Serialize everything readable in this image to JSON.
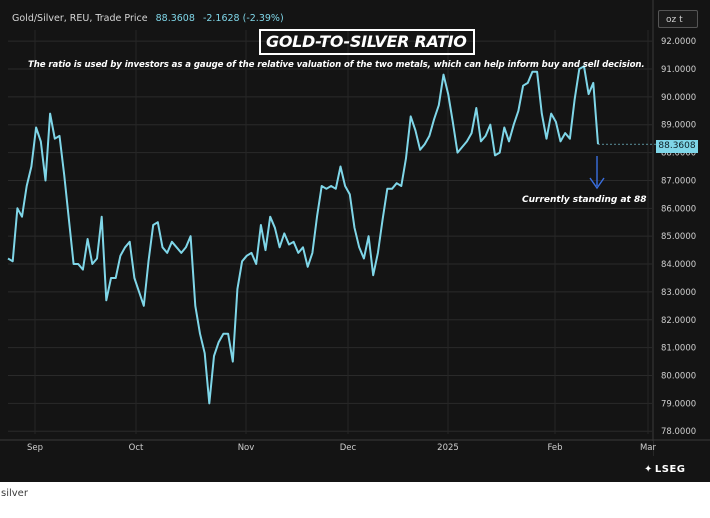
{
  "header": {
    "symbol": "Gold/Silver, REU, Trade Price",
    "price": "88.3608",
    "change": "-2.1628 (-2.39%)",
    "unit_button": "oz t"
  },
  "caption": "silver",
  "logo": {
    "text": "LSEG",
    "icon": "lseg-logo-icon"
  },
  "colors": {
    "background": "#141414",
    "line": "#7fd6e8",
    "arrow": "#3a6fe0",
    "text": "#ffffff"
  },
  "chart_data": {
    "type": "line",
    "title": "GOLD-TO-SILVER RATIO",
    "subtitle": "The ratio is used by investors as a gauge of the relative valuation of the two metals, which can help inform buy and sell decision.",
    "annotation": "Currently standing at 88",
    "last_value_label": "88.3608",
    "ylim": [
      77.9,
      92.4
    ],
    "y_ticks": [
      "92.0000",
      "91.0000",
      "90.0000",
      "89.0000",
      "88.0000",
      "87.0000",
      "86.0000",
      "85.0000",
      "84.0000",
      "83.0000",
      "82.0000",
      "81.0000",
      "80.0000",
      "79.0000",
      "78.0000"
    ],
    "x_ticks": [
      "Sep",
      "Oct",
      "Nov",
      "Dec",
      "2025",
      "Feb",
      "Mar"
    ],
    "grid": true,
    "series": [
      {
        "values": [
          84.2,
          84.1,
          86.0,
          85.7,
          86.8,
          87.5,
          88.9,
          88.4,
          87.0,
          89.4,
          88.5,
          88.6,
          87.2,
          85.6,
          84.0,
          84.0,
          83.8,
          84.9,
          84.0,
          84.2,
          85.7,
          82.7,
          83.5,
          83.5,
          84.3,
          84.6,
          84.8,
          83.5,
          83.0,
          82.5,
          84.1,
          85.4,
          85.5,
          84.6,
          84.4,
          84.8,
          84.6,
          84.4,
          84.6,
          85.0,
          82.5,
          81.5,
          80.8,
          79.0,
          80.7,
          81.2,
          81.5,
          81.5,
          80.5,
          83.1,
          84.1,
          84.3,
          84.4,
          84.0,
          85.4,
          84.5,
          85.7,
          85.3,
          84.6,
          85.1,
          84.7,
          84.8,
          84.4,
          84.6,
          83.9,
          84.4,
          85.7,
          86.8,
          86.7,
          86.8,
          86.7,
          87.5,
          86.8,
          86.5,
          85.3,
          84.6,
          84.2,
          85.0,
          83.6,
          84.4,
          85.6,
          86.7,
          86.7,
          86.9,
          86.8,
          87.8,
          89.3,
          88.8,
          88.1,
          88.3,
          88.6,
          89.2,
          89.7,
          90.8,
          90.1,
          89.1,
          88.0,
          88.2,
          88.4,
          88.7,
          89.6,
          88.4,
          88.6,
          89.0,
          87.9,
          88.0,
          88.9,
          88.4,
          89.0,
          89.5,
          90.4,
          90.5,
          90.9,
          90.9,
          89.4,
          88.5,
          89.4,
          89.1,
          88.4,
          88.7,
          88.5,
          89.9,
          91.0,
          91.1,
          90.1,
          90.5,
          88.3
        ]
      }
    ]
  }
}
